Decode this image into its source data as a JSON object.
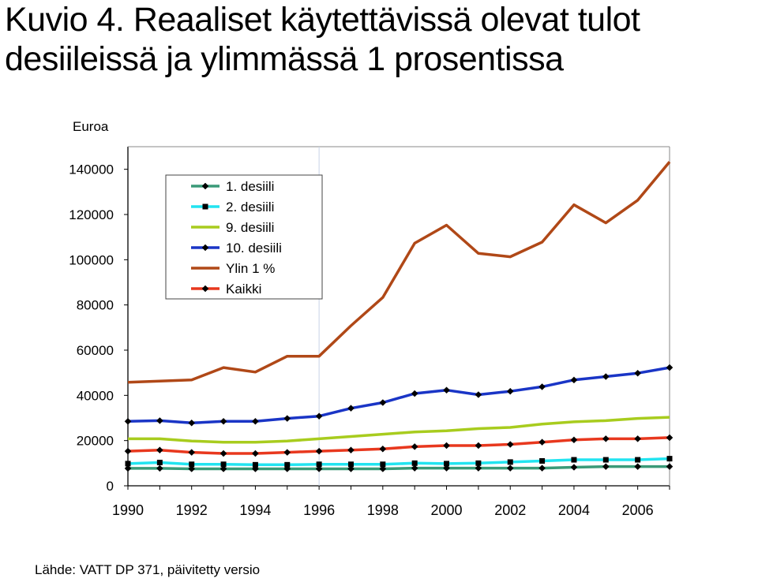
{
  "title_line1": "Kuvio 4.  Reaaliset käytettävissä olevat tulot",
  "title_line2": "desiileissä ja ylimmässä 1 prosentissa",
  "source": "Lähde: VATT DP 371, päivitetty versio",
  "chart_data": {
    "type": "line",
    "ylabel": "Euroa",
    "xlabel": "",
    "ylim": [
      0,
      150000
    ],
    "xlim": [
      1990,
      2007
    ],
    "yticks": [
      0,
      20000,
      40000,
      60000,
      80000,
      100000,
      120000,
      140000
    ],
    "xticks": [
      1990,
      1992,
      1994,
      1996,
      1998,
      2000,
      2002,
      2004,
      2006
    ],
    "grid": false,
    "legend_position": "top-left",
    "x": [
      1990,
      1991,
      1992,
      1993,
      1994,
      1995,
      1996,
      1997,
      1998,
      1999,
      2000,
      2001,
      2002,
      2003,
      2004,
      2005,
      2006,
      2007
    ],
    "series": [
      {
        "name": "1. desiili",
        "color": "#3a9a78",
        "marker": "diamond",
        "values": [
          7700,
          7700,
          7500,
          7500,
          7500,
          7500,
          7500,
          7500,
          7500,
          7800,
          7800,
          7800,
          7800,
          7800,
          8200,
          8500,
          8500,
          8500
        ]
      },
      {
        "name": "2. desiili",
        "color": "#22e4f0",
        "marker": "square",
        "values": [
          9800,
          10300,
          9500,
          9500,
          9300,
          9300,
          9500,
          9500,
          9500,
          10000,
          9800,
          10000,
          10500,
          11000,
          11500,
          11500,
          11500,
          12000
        ]
      },
      {
        "name": "9. desiili",
        "color": "#a8cc1e",
        "marker": "none",
        "values": [
          20800,
          20800,
          19800,
          19300,
          19300,
          19800,
          20800,
          21800,
          22800,
          23800,
          24300,
          25300,
          25800,
          27300,
          28300,
          28800,
          29800,
          30300
        ]
      },
      {
        "name": "10. desiili",
        "color": "#1a35c6",
        "marker": "diamond",
        "values": [
          28500,
          28800,
          27800,
          28500,
          28500,
          29800,
          30800,
          34300,
          36800,
          40800,
          42300,
          40300,
          41800,
          43800,
          46800,
          48300,
          49800,
          52300
        ]
      },
      {
        "name": "Ylin 1 %",
        "color": "#b04817",
        "marker": "none",
        "values": [
          45800,
          46300,
          46800,
          52300,
          50300,
          57300,
          57300,
          70800,
          83300,
          107300,
          115300,
          102800,
          101300,
          107800,
          124300,
          116300,
          126300,
          143300
        ]
      },
      {
        "name": "Kaikki",
        "color": "#e8381e",
        "marker": "diamond",
        "values": [
          15300,
          15800,
          14800,
          14300,
          14300,
          14800,
          15300,
          15800,
          16300,
          17300,
          17800,
          17800,
          18300,
          19300,
          20300,
          20800,
          20800,
          21300
        ]
      }
    ]
  }
}
